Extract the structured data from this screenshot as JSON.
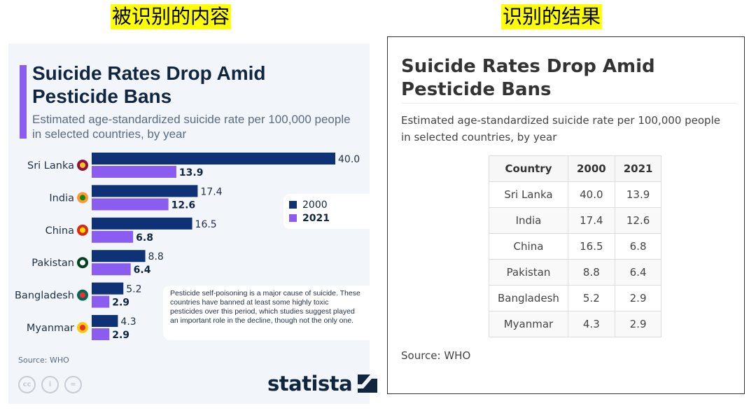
{
  "labels": {
    "left": "被识别的内容",
    "right": "识别的结果"
  },
  "chart_data": {
    "type": "bar",
    "orientation": "horizontal",
    "title": "Suicide Rates Drop Amid Pesticide Bans",
    "subtitle": "Estimated age-standardized suicide rate per 100,000 people in selected countries, by year",
    "categories": [
      "Sri Lanka",
      "India",
      "China",
      "Pakistan",
      "Bangladesh",
      "Myanmar"
    ],
    "series": [
      {
        "name": "2000",
        "color": "#0e3275",
        "values": [
          40.0,
          17.4,
          16.5,
          8.8,
          5.2,
          4.3
        ]
      },
      {
        "name": "2021",
        "color": "#8a5cf0",
        "values": [
          13.9,
          12.6,
          6.8,
          6.4,
          2.9,
          2.9
        ]
      }
    ],
    "xlim": [
      0,
      40
    ],
    "legend": "right",
    "annotation": "Pesticide self-poisoning is a major cause of suicide. These countries have banned at least some highly toxic pesticides over this period, which studies suggest played an important role in the decline, though not the only one.",
    "source": "Source: WHO",
    "brand": "statista"
  },
  "table": {
    "title": "Suicide Rates Drop Amid Pesticide Bans",
    "subtitle": "Estimated age-standardized suicide rate per 100,000 people in selected countries, by year",
    "headers": [
      "Country",
      "2000",
      "2021"
    ],
    "rows": [
      [
        "Sri Lanka",
        "40.0",
        "13.9"
      ],
      [
        "India",
        "17.4",
        "12.6"
      ],
      [
        "China",
        "16.5",
        "6.8"
      ],
      [
        "Pakistan",
        "8.8",
        "6.4"
      ],
      [
        "Bangladesh",
        "5.2",
        "2.9"
      ],
      [
        "Myanmar",
        "4.3",
        "2.9"
      ]
    ],
    "source": "Source: WHO"
  }
}
